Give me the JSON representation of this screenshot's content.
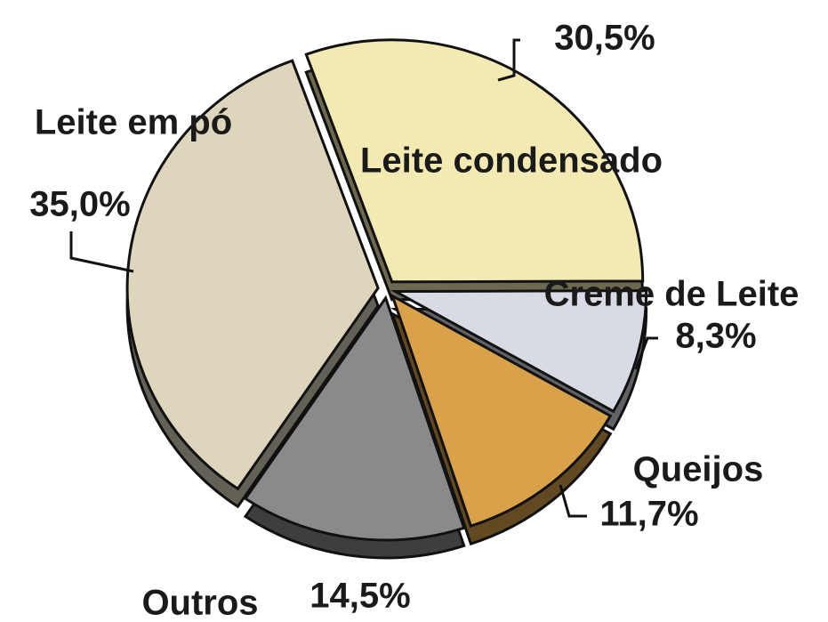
{
  "chart_data": {
    "type": "pie",
    "categories": [
      "Leite condensado",
      "Creme de Leite",
      "Queijos",
      "Outros",
      "Leite em pó"
    ],
    "values": [
      30.5,
      8.3,
      11.7,
      14.5,
      35.0
    ],
    "value_labels": [
      "30,5%",
      "8,3%",
      "11,7%",
      "14,5%",
      "35,0%"
    ],
    "colors": [
      "#f2eab2",
      "#d8dae4",
      "#d9a24a",
      "#8a8a8a",
      "#ddd6bd"
    ]
  }
}
